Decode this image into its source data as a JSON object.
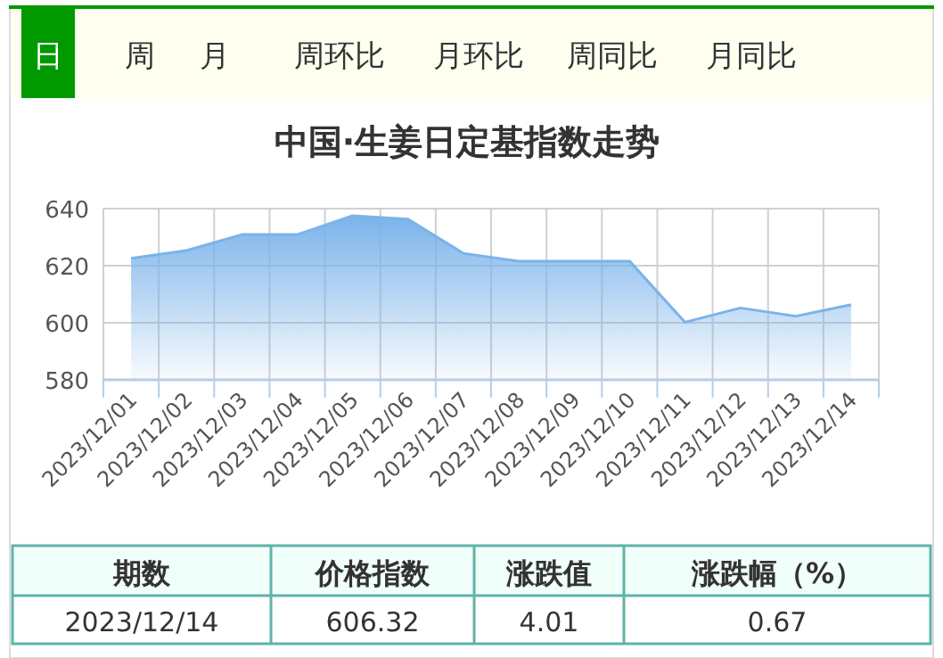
{
  "chart_data": {
    "type": "area",
    "title": "中国·生姜日定基指数走势",
    "categories": [
      "2023/12/01",
      "2023/12/02",
      "2023/12/03",
      "2023/12/04",
      "2023/12/05",
      "2023/12/06",
      "2023/12/07",
      "2023/12/08",
      "2023/12/09",
      "2023/12/10",
      "2023/12/11",
      "2023/12/12",
      "2023/12/13",
      "2023/12/14"
    ],
    "values": [
      622.6,
      625.3,
      630.9,
      630.9,
      637.5,
      636.3,
      624.3,
      621.6,
      621.6,
      621.6,
      600.2,
      605.2,
      602.3,
      606.3
    ],
    "color": "#7ab3ea",
    "ylim": [
      580,
      640
    ],
    "yticks": [
      580,
      600,
      620,
      640
    ],
    "grid": true,
    "annotations": [
      "日",
      "周",
      "月",
      "周环比",
      "月环比",
      "周同比",
      "月同比",
      "期数",
      "价格指数",
      "涨跌值",
      "涨跌幅（%）",
      "2023/12/14",
      "606.32",
      "4.01",
      "0.67"
    ]
  }
}
